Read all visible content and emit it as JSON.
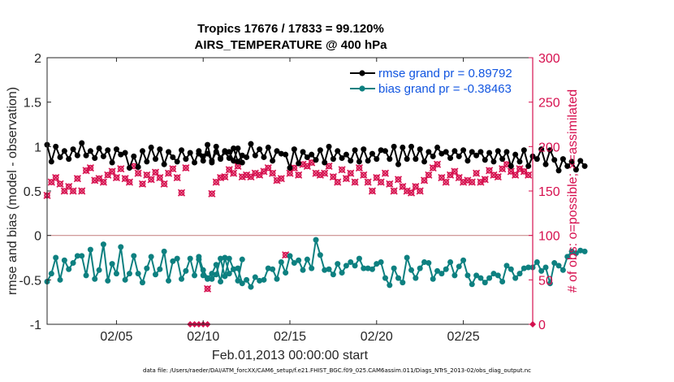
{
  "chart_data": {
    "type": "line",
    "title_line1": "Tropics 17676 / 17833 = 99.120%",
    "title_line2": "AIRS_TEMPERATURE @ 400 hPa",
    "xlabel": "Feb.01,2013 00:00:00 start",
    "ylabel_left": "rmse and bias (model - observation)",
    "ylabel_right": "# of obs: o=possible; ×=assimilated",
    "xlim": [
      1,
      29
    ],
    "ylim_left": [
      -1,
      2
    ],
    "ylim_right": [
      0,
      300
    ],
    "x_ticks": [
      5,
      10,
      15,
      20,
      25
    ],
    "x_tick_labels": [
      "02/05",
      "02/10",
      "02/15",
      "02/20",
      "02/25"
    ],
    "y_left_ticks": [
      -1,
      -0.5,
      0,
      0.5,
      1,
      1.5,
      2
    ],
    "y_left_tick_labels": [
      "-1",
      "-0.5",
      "0",
      "0.5",
      "1",
      "1.5",
      "2"
    ],
    "y_right_ticks": [
      0,
      50,
      100,
      150,
      200,
      250,
      300
    ],
    "y_right_tick_labels": [
      "0",
      "50",
      "100",
      "150",
      "200",
      "250",
      "300"
    ],
    "legend": [
      "rmse grand pr = 0.89792",
      "bias grand pr = -0.38463"
    ],
    "footnote": "data file: /Users/raeder/DAI/ATM_forcXX/CAM6_setup/f.e21.FHIST_BGC.f09_025.CAM6assim.011/Diags_NTrS_2013-02/obs_diag_output.nc",
    "colors": {
      "rmse": "#000000",
      "bias": "#0d8080",
      "obs": "#d6104f",
      "zero_line": "#c98c8c"
    },
    "series": [
      {
        "name": "rmse",
        "segments": [
          {
            "x_start": 1.0,
            "step": 0.25,
            "values": [
              1.02,
              0.83,
              1.0,
              0.88,
              0.95,
              0.86,
              0.97,
              0.9,
              1.04,
              0.9,
              0.95,
              0.87,
              0.98,
              0.89,
              0.96,
              0.82,
              0.97,
              0.91,
              0.93,
              0.76,
              0.89,
              0.77,
              0.95,
              0.83,
              0.99,
              0.86,
              0.97,
              0.8,
              0.94,
              0.88,
              0.83,
              0.96,
              0.86,
              0.93,
              0.82,
              0.95,
              0.89,
              0.92,
              0.84,
              0.94,
              0.87,
              0.95,
              0.94,
              0.84,
              0.98,
              0.82
            ]
          },
          {
            "x_start": 9.75,
            "step": 0.25,
            "values": [
              0.92,
              0.84,
              1.02,
              0.82,
              1.0,
              0.86,
              0.94,
              0.87,
              0.98,
              0.83,
              0.9,
              0.88,
              1.03,
              0.9,
              0.97,
              0.88,
              0.99,
              0.84,
              0.95,
              0.92,
              0.91,
              0.76,
              0.97,
              0.81,
              0.94,
              0.88,
              0.91,
              0.85,
              0.96,
              0.82,
              1.0,
              0.86,
              0.95,
              0.87,
              0.91,
              0.84,
              0.96,
              0.83,
              0.97,
              0.84,
              0.92,
              0.86,
              0.96,
              0.95,
              0.86,
              1.0,
              0.8,
              0.99,
              0.86,
              1.0,
              0.86,
              0.97,
              0.83,
              0.94,
              0.89,
              0.99,
              0.92,
              0.94,
              0.87,
              0.95,
              0.89,
              0.96,
              0.84,
              0.94,
              0.9,
              0.94,
              0.85,
              0.93,
              0.83,
              0.95,
              0.86,
              0.94,
              0.78,
              0.91,
              0.83,
              0.96,
              0.78,
              0.89,
              0.86,
              0.97,
              0.8,
              0.96,
              0.85,
              0.73,
              0.86,
              0.78,
              0.83,
              0.74,
              0.84,
              0.78
            ]
          }
        ]
      },
      {
        "name": "bias",
        "segments": [
          {
            "x_start": 1.0,
            "step": 0.25,
            "values": [
              -0.52,
              -0.43,
              -0.25,
              -0.5,
              -0.28,
              -0.38,
              -0.31,
              -0.23,
              -0.23,
              -0.45,
              -0.16,
              -0.49,
              -0.39,
              -0.1,
              -0.51,
              -0.32,
              -0.43,
              -0.13,
              -0.5,
              -0.43,
              -0.23,
              -0.43,
              -0.53,
              -0.37,
              -0.24,
              -0.44,
              -0.38,
              -0.18,
              -0.51,
              -0.29,
              -0.26,
              -0.49,
              -0.4,
              -0.26,
              -0.45,
              -0.24,
              -0.39,
              -0.48,
              -0.43,
              -0.33,
              -0.52,
              -0.25,
              -0.43,
              -0.38,
              -0.51,
              -0.27
            ]
          },
          {
            "x_start": 9.75,
            "step": 0.25,
            "values": [
              -0.27,
              -0.45,
              -0.49,
              -0.49,
              -0.44,
              -0.26,
              -0.46,
              -0.26,
              -0.38,
              -0.37,
              -0.54,
              -0.5,
              -0.58,
              -0.47,
              -0.51,
              -0.5,
              -0.37,
              -0.38,
              -0.49,
              -0.3,
              -0.42,
              -0.23,
              -0.31,
              -0.28,
              -0.39,
              -0.27,
              -0.37,
              -0.05,
              -0.22,
              -0.39,
              -0.38,
              -0.44,
              -0.32,
              -0.42,
              -0.34,
              -0.3,
              -0.34,
              -0.26,
              -0.37,
              -0.37,
              -0.38,
              -0.32,
              -0.3,
              -0.48,
              -0.56,
              -0.37,
              -0.48,
              -0.53,
              -0.25,
              -0.39,
              -0.48,
              -0.37,
              -0.3,
              -0.31,
              -0.49,
              -0.4,
              -0.43,
              -0.38,
              -0.3,
              -0.45,
              -0.35,
              -0.28,
              -0.45,
              -0.55,
              -0.45,
              -0.48,
              -0.53,
              -0.48,
              -0.43,
              -0.45,
              -0.52,
              -0.34,
              -0.38,
              -0.48,
              -0.43,
              -0.37,
              -0.36,
              -0.36,
              -0.3,
              -0.4,
              -0.36,
              -0.54,
              -0.31,
              -0.34,
              -0.39,
              -0.24,
              -0.18,
              -0.2,
              -0.17,
              -0.18
            ]
          }
        ]
      },
      {
        "name": "obs_count",
        "points": [
          {
            "x": 1.0,
            "y": 145
          },
          {
            "x": 1.25,
            "y": 160
          },
          {
            "x": 1.5,
            "y": 165
          },
          {
            "x": 1.75,
            "y": 158
          },
          {
            "x": 2.0,
            "y": 150
          },
          {
            "x": 2.25,
            "y": 155
          },
          {
            "x": 2.5,
            "y": 150
          },
          {
            "x": 2.75,
            "y": 164
          },
          {
            "x": 3.0,
            "y": 150
          },
          {
            "x": 3.25,
            "y": 173
          },
          {
            "x": 3.5,
            "y": 176
          },
          {
            "x": 3.75,
            "y": 162
          },
          {
            "x": 4.0,
            "y": 164
          },
          {
            "x": 4.25,
            "y": 160
          },
          {
            "x": 4.5,
            "y": 168
          },
          {
            "x": 4.75,
            "y": 172
          },
          {
            "x": 5.0,
            "y": 165
          },
          {
            "x": 5.25,
            "y": 175
          },
          {
            "x": 5.5,
            "y": 164
          },
          {
            "x": 5.75,
            "y": 160
          },
          {
            "x": 6.0,
            "y": 178
          },
          {
            "x": 6.25,
            "y": 170
          },
          {
            "x": 6.5,
            "y": 158
          },
          {
            "x": 6.75,
            "y": 168
          },
          {
            "x": 7.0,
            "y": 163
          },
          {
            "x": 7.25,
            "y": 171
          },
          {
            "x": 7.5,
            "y": 165
          },
          {
            "x": 7.75,
            "y": 158
          },
          {
            "x": 8.0,
            "y": 170
          },
          {
            "x": 8.25,
            "y": 175
          },
          {
            "x": 8.5,
            "y": 165
          },
          {
            "x": 8.75,
            "y": 148
          },
          {
            "x": 9.0,
            "y": 176
          },
          {
            "x": 9.25,
            "y": 0
          },
          {
            "x": 9.5,
            "y": 0
          },
          {
            "x": 9.75,
            "y": 0
          },
          {
            "x": 10.0,
            "y": 0
          },
          {
            "x": 10.25,
            "y": 0
          },
          {
            "x": 10.25,
            "y": 40
          },
          {
            "x": 10.5,
            "y": 147
          },
          {
            "x": 10.75,
            "y": 160
          },
          {
            "x": 11.0,
            "y": 165
          },
          {
            "x": 11.25,
            "y": 166
          },
          {
            "x": 11.5,
            "y": 174
          },
          {
            "x": 11.75,
            "y": 170
          },
          {
            "x": 12.0,
            "y": 178
          },
          {
            "x": 12.25,
            "y": 166
          },
          {
            "x": 12.5,
            "y": 168
          },
          {
            "x": 12.75,
            "y": 166
          },
          {
            "x": 13.0,
            "y": 170
          },
          {
            "x": 13.25,
            "y": 168
          },
          {
            "x": 13.5,
            "y": 172
          },
          {
            "x": 13.75,
            "y": 176
          },
          {
            "x": 14.0,
            "y": 170
          },
          {
            "x": 14.25,
            "y": 162
          },
          {
            "x": 14.5,
            "y": 164
          },
          {
            "x": 14.75,
            "y": 78
          },
          {
            "x": 15.0,
            "y": 170
          },
          {
            "x": 15.25,
            "y": 176
          },
          {
            "x": 15.5,
            "y": 168
          },
          {
            "x": 15.75,
            "y": 180
          },
          {
            "x": 16.0,
            "y": 178
          },
          {
            "x": 16.25,
            "y": 182
          },
          {
            "x": 16.5,
            "y": 170
          },
          {
            "x": 16.75,
            "y": 168
          },
          {
            "x": 17.0,
            "y": 170
          },
          {
            "x": 17.25,
            "y": 178
          },
          {
            "x": 17.5,
            "y": 166
          },
          {
            "x": 17.75,
            "y": 160
          },
          {
            "x": 18.0,
            "y": 174
          },
          {
            "x": 18.25,
            "y": 164
          },
          {
            "x": 18.5,
            "y": 170
          },
          {
            "x": 18.75,
            "y": 160
          },
          {
            "x": 19.0,
            "y": 176
          },
          {
            "x": 19.25,
            "y": 168
          },
          {
            "x": 19.5,
            "y": 160
          },
          {
            "x": 19.75,
            "y": 150
          },
          {
            "x": 20.0,
            "y": 165
          },
          {
            "x": 20.25,
            "y": 160
          },
          {
            "x": 20.5,
            "y": 170
          },
          {
            "x": 20.75,
            "y": 158
          },
          {
            "x": 21.0,
            "y": 150
          },
          {
            "x": 21.25,
            "y": 163
          },
          {
            "x": 21.5,
            "y": 155
          },
          {
            "x": 21.75,
            "y": 150
          },
          {
            "x": 22.0,
            "y": 148
          },
          {
            "x": 22.25,
            "y": 155
          },
          {
            "x": 22.5,
            "y": 150
          },
          {
            "x": 22.75,
            "y": 162
          },
          {
            "x": 23.0,
            "y": 168
          },
          {
            "x": 23.25,
            "y": 176
          },
          {
            "x": 23.5,
            "y": 180
          },
          {
            "x": 23.75,
            "y": 165
          },
          {
            "x": 24.0,
            "y": 160
          },
          {
            "x": 24.25,
            "y": 168
          },
          {
            "x": 24.5,
            "y": 172
          },
          {
            "x": 24.75,
            "y": 165
          },
          {
            "x": 25.0,
            "y": 160
          },
          {
            "x": 25.25,
            "y": 162
          },
          {
            "x": 25.5,
            "y": 160
          },
          {
            "x": 25.75,
            "y": 170
          },
          {
            "x": 26.0,
            "y": 160
          },
          {
            "x": 26.25,
            "y": 163
          },
          {
            "x": 26.5,
            "y": 173
          },
          {
            "x": 26.75,
            "y": 168
          },
          {
            "x": 27.0,
            "y": 166
          },
          {
            "x": 27.25,
            "y": 175
          },
          {
            "x": 27.5,
            "y": 180
          },
          {
            "x": 27.75,
            "y": 172
          },
          {
            "x": 28.0,
            "y": 168
          },
          {
            "x": 28.25,
            "y": 175
          },
          {
            "x": 28.5,
            "y": 172
          },
          {
            "x": 28.75,
            "y": 168
          },
          {
            "x": 29.0,
            "y": 0
          }
        ]
      }
    ]
  }
}
